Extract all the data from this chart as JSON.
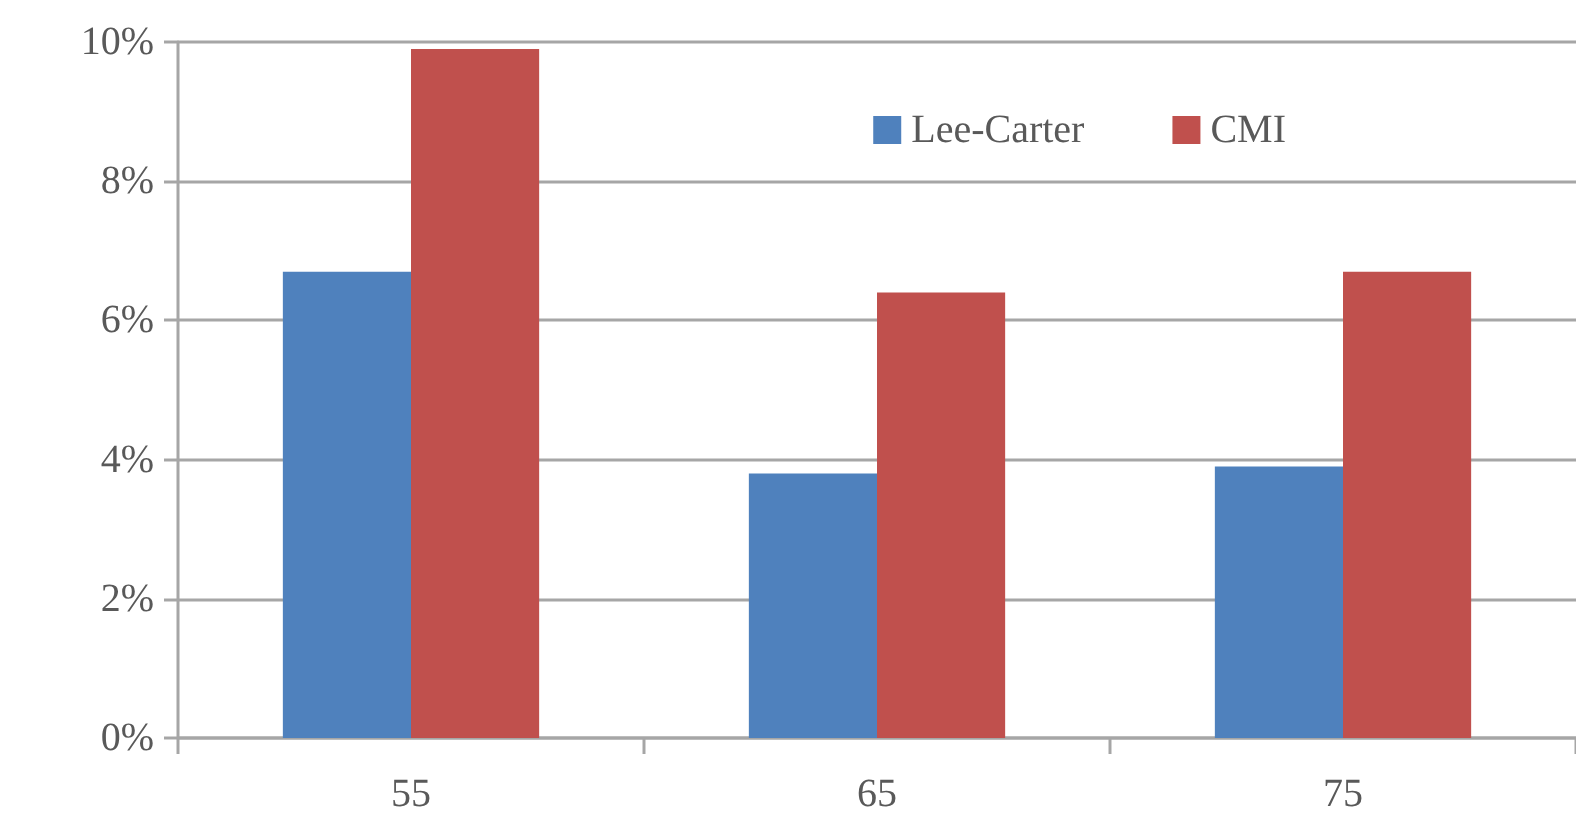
{
  "chart_data": {
    "type": "bar",
    "categories": [
      "55",
      "65",
      "75"
    ],
    "series": [
      {
        "name": "Lee-Carter",
        "color": "#4f81bd",
        "values": [
          6.7,
          3.8,
          3.9
        ]
      },
      {
        "name": "CMI",
        "color": "#c0504d",
        "values": [
          9.9,
          6.4,
          6.7
        ]
      }
    ],
    "ylim": [
      0,
      10
    ],
    "yticks": [
      {
        "value": 0,
        "label": "0%"
      },
      {
        "value": 2,
        "label": "2%"
      },
      {
        "value": 4,
        "label": "4%"
      },
      {
        "value": 6,
        "label": "6%"
      },
      {
        "value": 8,
        "label": "8%"
      },
      {
        "value": 10,
        "label": "10%"
      }
    ],
    "grid": "y",
    "legend": "top right"
  }
}
